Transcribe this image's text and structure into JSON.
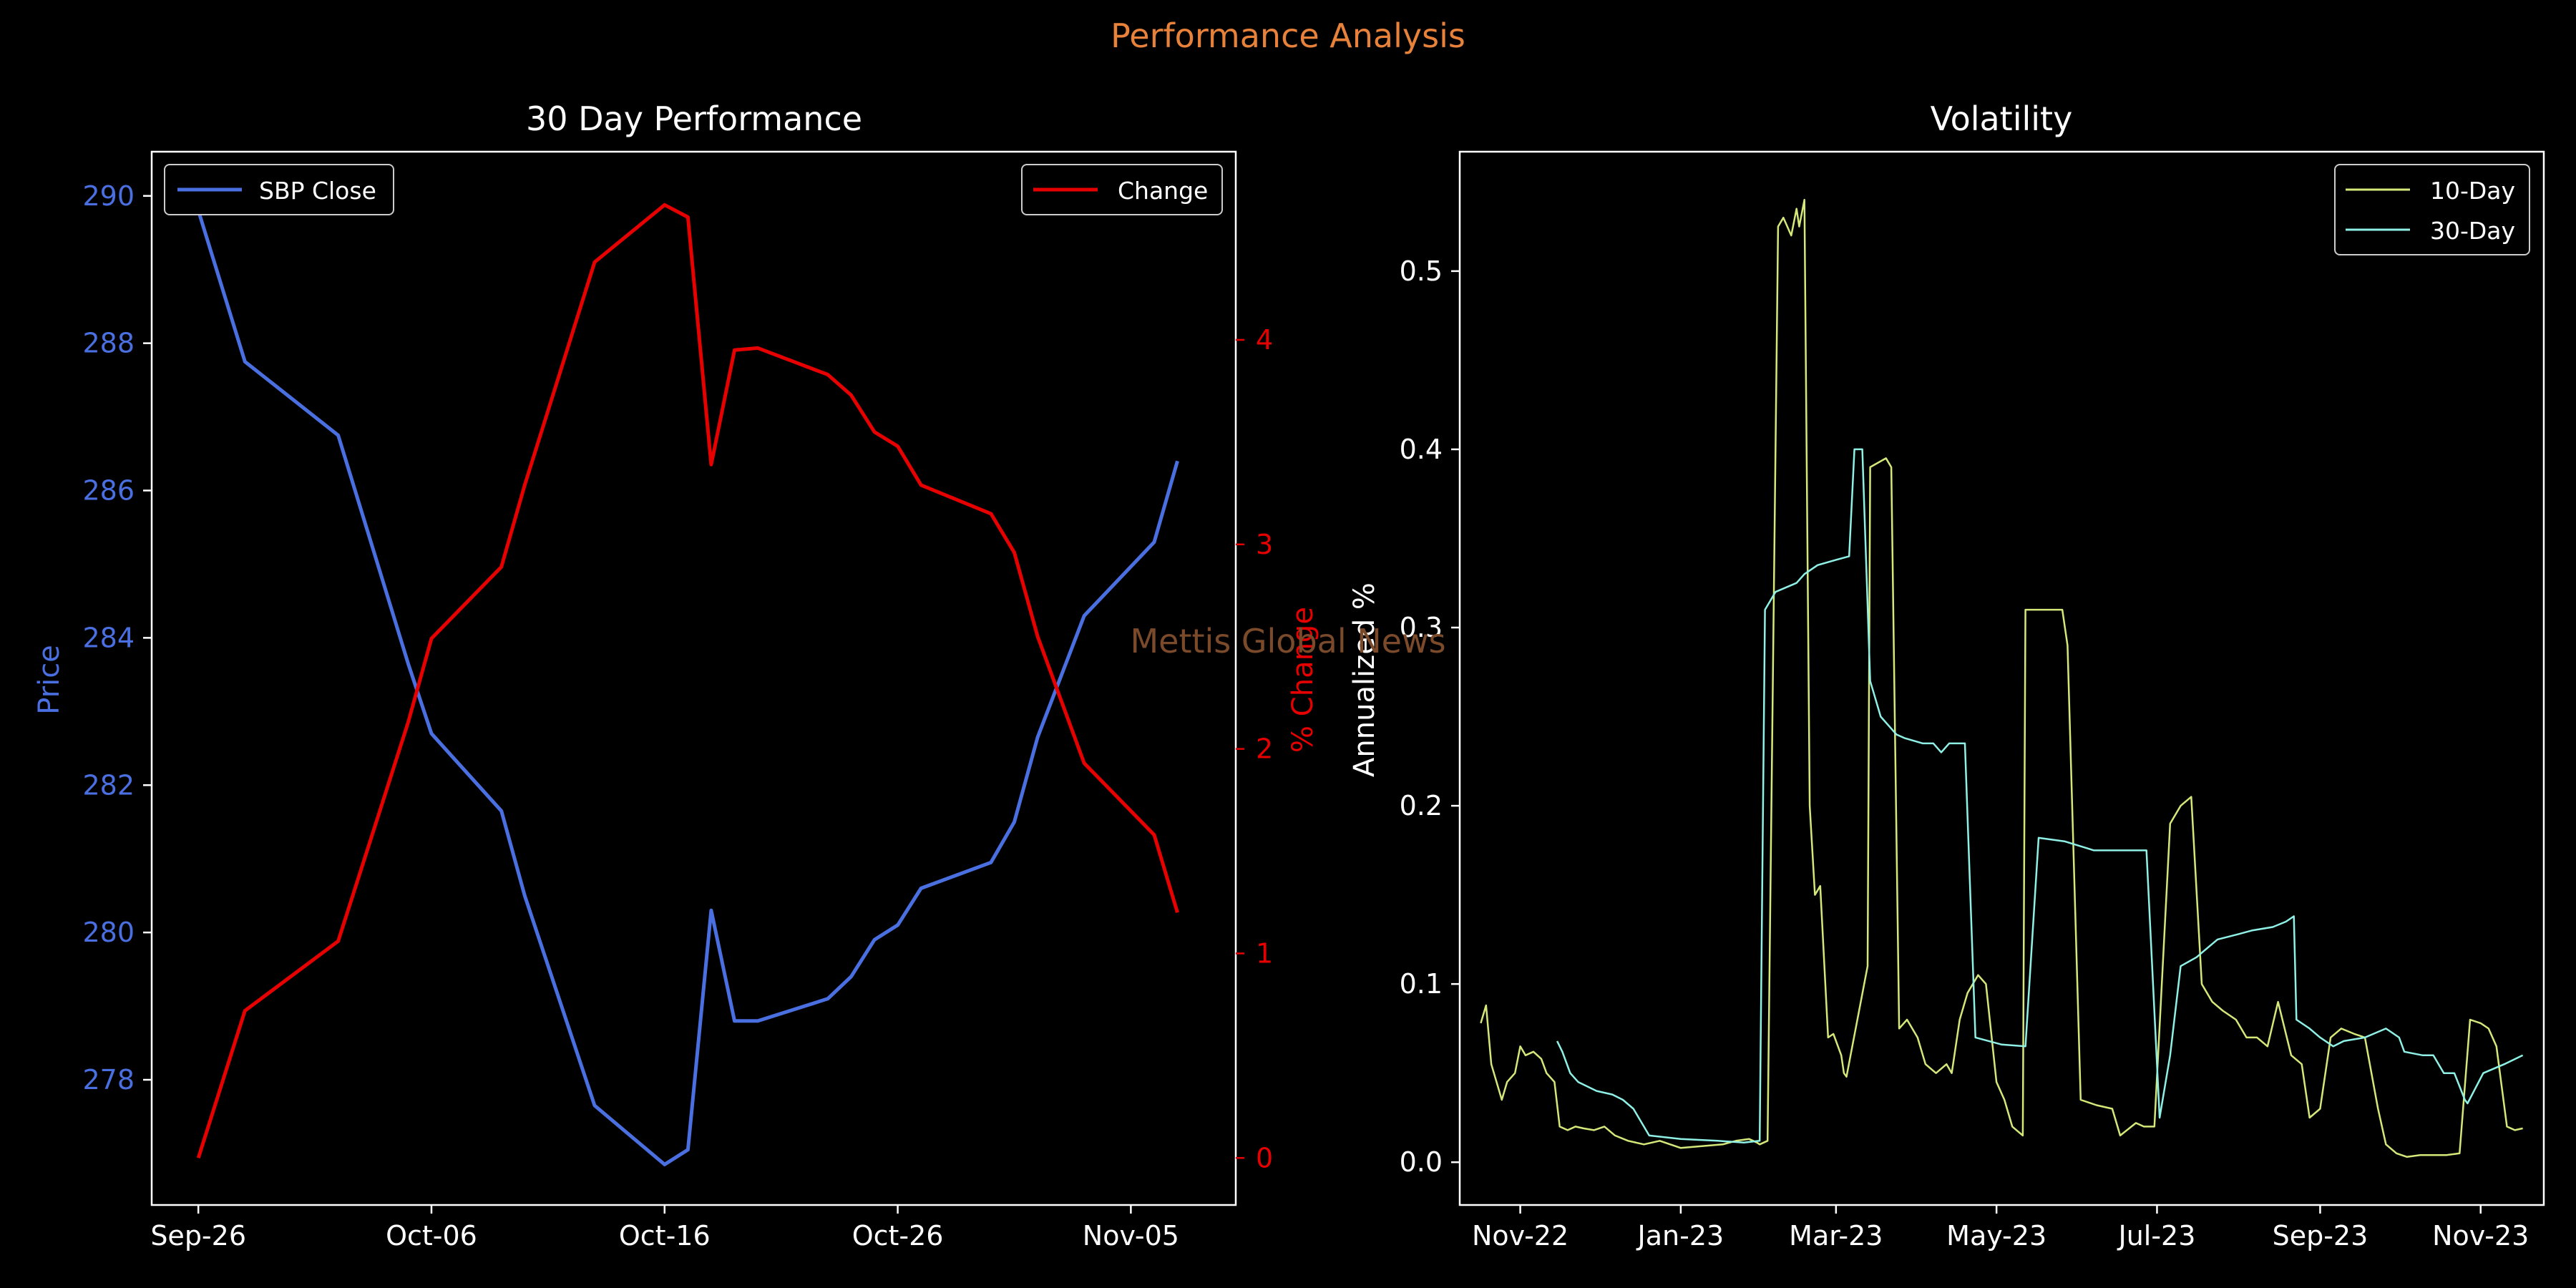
{
  "figure": {
    "suptitle": "Performance Analysis",
    "watermark": "Mettis Global News",
    "colors": {
      "background": "#000000",
      "suptitle": "#e8823a",
      "watermark": "#7a4a2a",
      "axes": "#ffffff"
    }
  },
  "chart_data": [
    {
      "type": "line",
      "title": "30 Day Performance",
      "ylabel": "Price",
      "y2label": "% Change",
      "x_ticks": [
        "Sep-26",
        "Oct-06",
        "Oct-16",
        "Oct-26",
        "Nov-05"
      ],
      "x_tick_days": [
        0,
        10,
        20,
        30,
        40
      ],
      "xlim": [
        -2,
        44.5
      ],
      "ylim": [
        276.3,
        290.6
      ],
      "y_ticks": [
        "278",
        "280",
        "282",
        "284",
        "286",
        "288",
        "290"
      ],
      "y_tick_values": [
        278,
        280,
        282,
        284,
        286,
        288,
        290
      ],
      "y2lim": [
        -0.23,
        4.92
      ],
      "y2_ticks": [
        "0",
        "1",
        "2",
        "3",
        "4"
      ],
      "y2_tick_values": [
        0,
        1,
        2,
        3,
        4
      ],
      "series": [
        {
          "name": "SBP Close",
          "axis": "left",
          "color": "#4a6fe0",
          "legend": "top-left",
          "x": [
            0,
            2,
            6,
            9,
            10,
            13,
            14,
            17,
            20,
            21,
            22,
            23,
            24,
            27,
            28,
            29,
            30,
            31,
            34,
            35,
            36,
            38,
            41,
            42
          ],
          "y": [
            289.8,
            287.75,
            286.75,
            283.65,
            282.7,
            281.65,
            280.5,
            277.65,
            276.85,
            277.05,
            280.3,
            278.8,
            278.8,
            279.1,
            279.4,
            279.9,
            280.1,
            280.6,
            280.95,
            281.5,
            282.65,
            284.3,
            285.3,
            286.4
          ]
        },
        {
          "name": "Change",
          "axis": "right",
          "color": "#e60000",
          "legend": "top-right",
          "x": [
            0,
            2,
            6,
            9,
            10,
            13,
            14,
            17,
            20,
            21,
            22,
            23,
            24,
            27,
            28,
            29,
            30,
            31,
            34,
            35,
            36,
            38,
            41,
            42
          ],
          "y": [
            0.0,
            0.72,
            1.06,
            2.13,
            2.54,
            2.89,
            3.29,
            4.38,
            4.66,
            4.6,
            3.39,
            3.95,
            3.96,
            3.83,
            3.73,
            3.55,
            3.48,
            3.29,
            3.15,
            2.96,
            2.55,
            1.93,
            1.58,
            1.2
          ]
        }
      ]
    },
    {
      "type": "line",
      "title": "Volatility",
      "ylabel": "Annualized %",
      "x_ticks": [
        "Nov-22",
        "Jan-23",
        "Mar-23",
        "May-23",
        "Jul-23",
        "Sep-23",
        "Nov-23"
      ],
      "x_tick_dates": [
        "2022-11-01",
        "2023-01-01",
        "2023-03-01",
        "2023-05-01",
        "2023-07-01",
        "2023-09-01",
        "2023-11-01"
      ],
      "xlim": [
        "2022-10-09",
        "2023-11-25"
      ],
      "ylim": [
        -0.024,
        0.567
      ],
      "y_ticks": [
        "0.0",
        "0.1",
        "0.2",
        "0.3",
        "0.4",
        "0.5"
      ],
      "y_tick_values": [
        0,
        0.1,
        0.2,
        0.3,
        0.4,
        0.5
      ],
      "legend": "top-right",
      "series": [
        {
          "name": "10-Day",
          "color": "#d4e87a",
          "x": [
            "2022-10-17",
            "2022-10-19",
            "2022-10-21",
            "2022-10-25",
            "2022-10-27",
            "2022-10-30",
            "2022-11-01",
            "2022-11-03",
            "2022-11-06",
            "2022-11-09",
            "2022-11-11",
            "2022-11-14",
            "2022-11-16",
            "2022-11-19",
            "2022-11-22",
            "2022-11-25",
            "2022-11-29",
            "2022-12-03",
            "2022-12-07",
            "2022-12-12",
            "2022-12-18",
            "2022-12-24",
            "2023-01-01",
            "2023-01-09",
            "2023-01-17",
            "2023-01-22",
            "2023-01-27",
            "2023-01-30",
            "2023-01-31",
            "2023-02-03",
            "2023-02-07",
            "2023-02-09",
            "2023-02-12",
            "2023-02-14",
            "2023-02-15",
            "2023-02-17",
            "2023-02-19",
            "2023-02-21",
            "2023-02-23",
            "2023-02-26",
            "2023-02-28",
            "2023-03-03",
            "2023-03-04",
            "2023-03-05",
            "2023-03-13",
            "2023-03-14",
            "2023-03-20",
            "2023-03-22",
            "2023-03-25",
            "2023-03-28",
            "2023-04-01",
            "2023-04-04",
            "2023-04-08",
            "2023-04-12",
            "2023-04-14",
            "2023-04-17",
            "2023-04-20",
            "2023-04-24",
            "2023-04-27",
            "2023-05-01",
            "2023-05-04",
            "2023-05-07",
            "2023-05-11",
            "2023-05-12",
            "2023-05-26",
            "2023-05-28",
            "2023-06-02",
            "2023-06-08",
            "2023-06-14",
            "2023-06-17",
            "2023-06-23",
            "2023-06-26",
            "2023-06-30",
            "2023-07-06",
            "2023-07-10",
            "2023-07-14",
            "2023-07-18",
            "2023-07-22",
            "2023-07-26",
            "2023-07-31",
            "2023-08-04",
            "2023-08-08",
            "2023-08-12",
            "2023-08-16",
            "2023-08-21",
            "2023-08-25",
            "2023-08-28",
            "2023-09-01",
            "2023-09-05",
            "2023-09-09",
            "2023-09-14",
            "2023-09-18",
            "2023-09-23",
            "2023-09-26",
            "2023-09-30",
            "2023-10-04",
            "2023-10-09",
            "2023-10-14",
            "2023-10-19",
            "2023-10-24",
            "2023-10-28",
            "2023-11-01",
            "2023-11-04",
            "2023-11-07",
            "2023-11-11",
            "2023-11-14",
            "2023-11-17"
          ],
          "y": [
            0.078,
            0.088,
            0.055,
            0.035,
            0.045,
            0.05,
            0.065,
            0.06,
            0.062,
            0.058,
            0.05,
            0.045,
            0.02,
            0.018,
            0.02,
            0.019,
            0.018,
            0.02,
            0.015,
            0.012,
            0.01,
            0.012,
            0.008,
            0.009,
            0.01,
            0.012,
            0.013,
            0.011,
            0.01,
            0.012,
            0.525,
            0.53,
            0.52,
            0.535,
            0.525,
            0.54,
            0.2,
            0.15,
            0.155,
            0.07,
            0.072,
            0.06,
            0.05,
            0.048,
            0.11,
            0.39,
            0.395,
            0.39,
            0.075,
            0.08,
            0.07,
            0.055,
            0.05,
            0.055,
            0.05,
            0.08,
            0.095,
            0.105,
            0.1,
            0.045,
            0.035,
            0.02,
            0.015,
            0.31,
            0.31,
            0.29,
            0.035,
            0.032,
            0.03,
            0.015,
            0.022,
            0.02,
            0.02,
            0.19,
            0.2,
            0.205,
            0.1,
            0.09,
            0.085,
            0.08,
            0.07,
            0.07,
            0.065,
            0.09,
            0.06,
            0.055,
            0.025,
            0.03,
            0.07,
            0.075,
            0.072,
            0.07,
            0.03,
            0.01,
            0.005,
            0.003,
            0.004,
            0.004,
            0.004,
            0.005,
            0.08,
            0.078,
            0.075,
            0.065,
            0.02,
            0.018,
            0.019
          ]
        },
        {
          "name": "30-Day",
          "color": "#8ff0e6",
          "x": [
            "2022-11-15",
            "2022-11-17",
            "2022-11-20",
            "2022-11-23",
            "2022-11-30",
            "2022-12-06",
            "2022-12-10",
            "2022-12-14",
            "2022-12-20",
            "2023-01-01",
            "2023-01-15",
            "2023-01-25",
            "2023-01-31",
            "2023-02-02",
            "2023-02-06",
            "2023-02-14",
            "2023-02-17",
            "2023-02-22",
            "2023-03-01",
            "2023-03-06",
            "2023-03-08",
            "2023-03-11",
            "2023-03-14",
            "2023-03-18",
            "2023-03-24",
            "2023-03-27",
            "2023-04-03",
            "2023-04-07",
            "2023-04-10",
            "2023-04-13",
            "2023-04-19",
            "2023-04-23",
            "2023-05-03",
            "2023-05-12",
            "2023-05-17",
            "2023-05-27",
            "2023-06-07",
            "2023-06-15",
            "2023-06-27",
            "2023-07-02",
            "2023-07-06",
            "2023-07-10",
            "2023-07-16",
            "2023-07-20",
            "2023-07-24",
            "2023-08-01",
            "2023-08-06",
            "2023-08-14",
            "2023-08-19",
            "2023-08-22",
            "2023-08-23",
            "2023-08-28",
            "2023-09-01",
            "2023-09-06",
            "2023-09-10",
            "2023-09-18",
            "2023-09-26",
            "2023-10-01",
            "2023-10-03",
            "2023-10-10",
            "2023-10-14",
            "2023-10-18",
            "2023-10-22",
            "2023-10-26",
            "2023-10-27",
            "2023-11-02",
            "2023-11-10",
            "2023-11-17"
          ],
          "y": [
            0.068,
            0.062,
            0.05,
            0.045,
            0.04,
            0.038,
            0.035,
            0.03,
            0.015,
            0.013,
            0.012,
            0.011,
            0.012,
            0.31,
            0.32,
            0.325,
            0.33,
            0.335,
            0.338,
            0.34,
            0.4,
            0.4,
            0.27,
            0.25,
            0.24,
            0.238,
            0.235,
            0.235,
            0.23,
            0.235,
            0.235,
            0.07,
            0.066,
            0.065,
            0.182,
            0.18,
            0.175,
            0.175,
            0.175,
            0.025,
            0.06,
            0.11,
            0.115,
            0.12,
            0.125,
            0.128,
            0.13,
            0.132,
            0.135,
            0.138,
            0.08,
            0.075,
            0.07,
            0.065,
            0.068,
            0.07,
            0.075,
            0.07,
            0.062,
            0.06,
            0.06,
            0.05,
            0.05,
            0.035,
            0.033,
            0.05,
            0.055,
            0.06
          ]
        }
      ]
    }
  ]
}
